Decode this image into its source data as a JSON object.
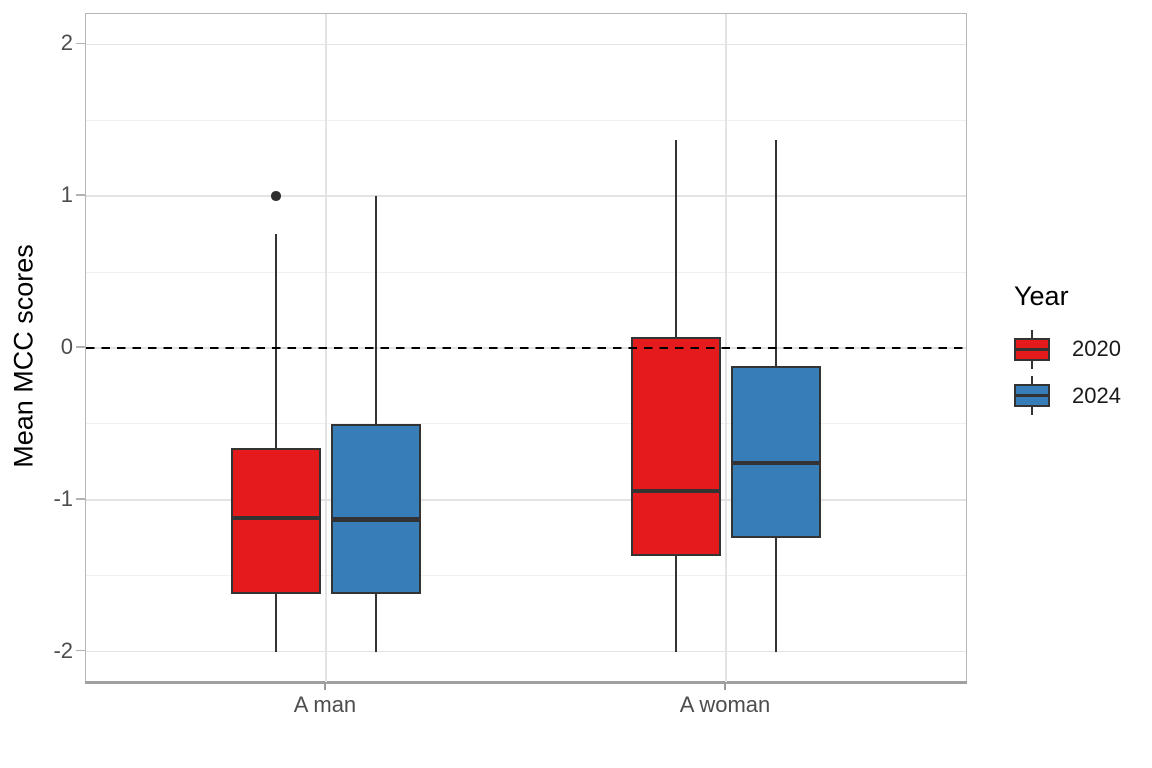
{
  "chart_data": {
    "type": "boxplot",
    "title": "",
    "xlabel": "",
    "ylabel": "Mean MCC scores",
    "categories": [
      "A man",
      "A woman"
    ],
    "legend_title": "Year",
    "legend_position": "right",
    "ylim": [
      -2.2,
      2.2
    ],
    "yticks": [
      2,
      1,
      0,
      -1,
      -2
    ],
    "ytick_labels": [
      "2",
      "1",
      "0",
      "-1",
      "-2"
    ],
    "yminor_ticks": [
      1.5,
      0.5,
      -0.5,
      -1.5
    ],
    "grid": true,
    "reference_line": {
      "y": 0,
      "style": "dashed",
      "color": "#000000"
    },
    "box_outline_color": "#333333",
    "outlier_color": "#2e2e2e",
    "series": [
      {
        "name": "2020",
        "color": "#E41A1C",
        "boxes": [
          {
            "category": "A man",
            "whisker_low": -2.0,
            "q1": -1.62,
            "median": -1.12,
            "q3": -0.66,
            "whisker_high": 0.75,
            "outliers": [
              1.0
            ]
          },
          {
            "category": "A woman",
            "whisker_low": -2.0,
            "q1": -1.37,
            "median": -0.94,
            "q3": 0.07,
            "whisker_high": 1.37,
            "outliers": []
          }
        ]
      },
      {
        "name": "2024",
        "color": "#377EB8",
        "boxes": [
          {
            "category": "A man",
            "whisker_low": -2.0,
            "q1": -1.62,
            "median": -1.13,
            "q3": -0.5,
            "whisker_high": 1.0,
            "outliers": []
          },
          {
            "category": "A woman",
            "whisker_low": -2.0,
            "q1": -1.25,
            "median": -0.76,
            "q3": -0.12,
            "whisker_high": 1.37,
            "outliers": []
          }
        ]
      }
    ]
  }
}
